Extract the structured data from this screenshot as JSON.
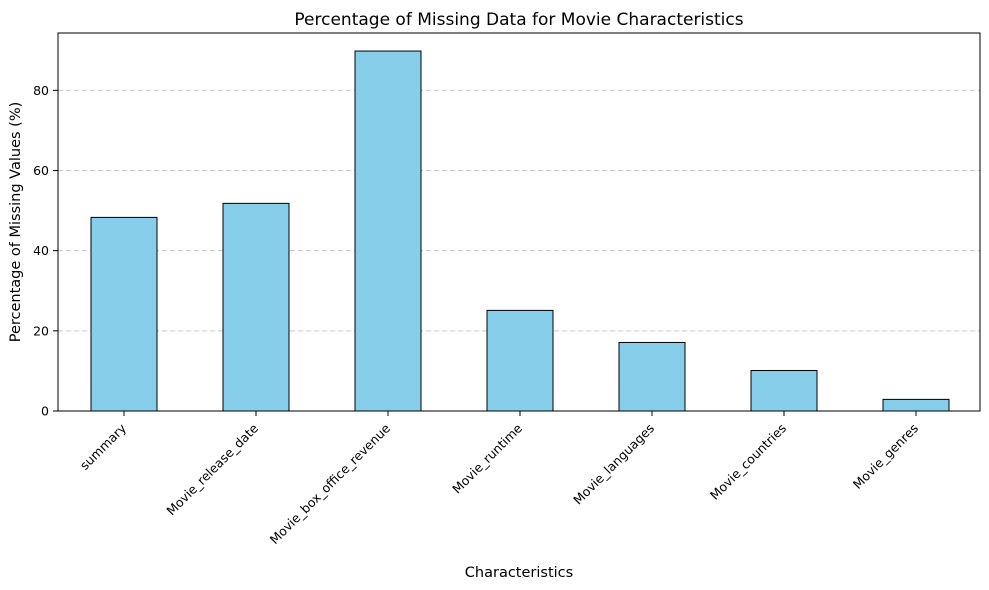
{
  "chart_data": {
    "type": "bar",
    "title": "Percentage of Missing Data for Movie Characteristics",
    "xlabel": "Characteristics",
    "ylabel": "Percentage of Missing Values (%)",
    "categories": [
      "summary",
      "Movie_release_date",
      "Movie_box_office_revenue",
      "Movie_runtime",
      "Movie_languages",
      "Movie_countries",
      "Movie_genres"
    ],
    "values": [
      48.3,
      51.8,
      89.8,
      25.1,
      17.1,
      10.1,
      2.9
    ],
    "ylim": [
      0,
      94.3
    ],
    "yticks": [
      0,
      20,
      40,
      60,
      80
    ],
    "grid": "y-dashed",
    "bar_color": "#87ceeb",
    "edge_color": "#000000",
    "grid_color": "#c8c8c8"
  }
}
